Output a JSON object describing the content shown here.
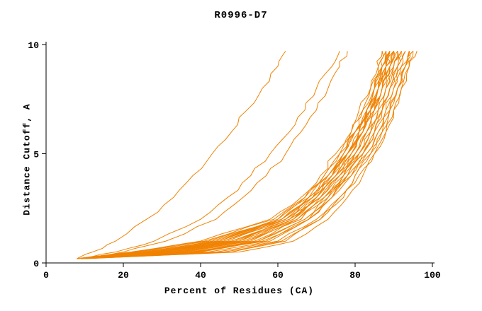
{
  "chart_data": {
    "type": "line",
    "title": "R0996-D7",
    "xlabel": "Percent of Residues (CA)",
    "ylabel": "Distance Cutoff, A",
    "xlim": [
      0,
      100
    ],
    "ylim": [
      0,
      10
    ],
    "x_ticks": [
      0,
      20,
      40,
      60,
      80,
      100
    ],
    "y_ticks": [
      0,
      5,
      10
    ],
    "grid": false,
    "legend": "none",
    "line_color": "#f08200",
    "axis_color": "#000000",
    "cutoff_levels": [
      0.2,
      0.5,
      1,
      2,
      3,
      4,
      5,
      6,
      7,
      8,
      9,
      9.7
    ],
    "series_note": "each series lists Percent of Residues (CA) at the shared cutoff_levels (Angstroms)",
    "series": [
      [
        8,
        12,
        18,
        26,
        33,
        38,
        43,
        48,
        52,
        56,
        60,
        62
      ],
      [
        9,
        18,
        28,
        40,
        47,
        53,
        58,
        63,
        67,
        70,
        74,
        76
      ],
      [
        9,
        20,
        31,
        44,
        51,
        57,
        62,
        66,
        70,
        73,
        76,
        78
      ],
      [
        10,
        42,
        58,
        68,
        74,
        78,
        82,
        85,
        87,
        89,
        91,
        92
      ],
      [
        11,
        48,
        62,
        71,
        76,
        80,
        84,
        87,
        89,
        91,
        93,
        94
      ],
      [
        10,
        50,
        64,
        73,
        78,
        82,
        85,
        88,
        90,
        92,
        94,
        95
      ],
      [
        8,
        24,
        42,
        60,
        67,
        72,
        76,
        79,
        82,
        84,
        86,
        87
      ],
      [
        9,
        28,
        46,
        62,
        69,
        73,
        77,
        80,
        83,
        85,
        87,
        88
      ],
      [
        10,
        32,
        50,
        64,
        70,
        75,
        78,
        81,
        84,
        86,
        88,
        89
      ],
      [
        8,
        26,
        44,
        61,
        68,
        73,
        77,
        80,
        82,
        85,
        87,
        88
      ],
      [
        9,
        30,
        48,
        63,
        70,
        75,
        79,
        82,
        84,
        86,
        88,
        90
      ],
      [
        10,
        34,
        52,
        65,
        71,
        76,
        80,
        83,
        85,
        87,
        89,
        90
      ],
      [
        8,
        22,
        40,
        58,
        66,
        71,
        75,
        79,
        81,
        84,
        86,
        87
      ],
      [
        9,
        36,
        54,
        66,
        72,
        77,
        81,
        84,
        86,
        88,
        90,
        91
      ],
      [
        10,
        38,
        55,
        67,
        73,
        78,
        82,
        85,
        87,
        89,
        91,
        92
      ],
      [
        8,
        27,
        45,
        61,
        68,
        74,
        78,
        81,
        83,
        86,
        88,
        89
      ],
      [
        9,
        31,
        49,
        63,
        70,
        75,
        79,
        82,
        85,
        87,
        89,
        90
      ],
      [
        10,
        29,
        47,
        62,
        69,
        74,
        78,
        81,
        84,
        86,
        88,
        89
      ],
      [
        8,
        33,
        51,
        64,
        71,
        76,
        80,
        83,
        85,
        87,
        89,
        91
      ],
      [
        9,
        25,
        43,
        60,
        68,
        73,
        77,
        80,
        83,
        85,
        87,
        88
      ],
      [
        10,
        35,
        53,
        66,
        72,
        77,
        81,
        84,
        86,
        88,
        90,
        92
      ],
      [
        9,
        37,
        55,
        67,
        73,
        78,
        82,
        85,
        88,
        90,
        92,
        93
      ],
      [
        8,
        28,
        46,
        62,
        69,
        74,
        78,
        82,
        84,
        86,
        88,
        90
      ],
      [
        9,
        32,
        50,
        64,
        71,
        76,
        80,
        83,
        86,
        88,
        90,
        91
      ],
      [
        10,
        30,
        48,
        63,
        70,
        75,
        79,
        82,
        85,
        87,
        89,
        90
      ],
      [
        8,
        26,
        45,
        61,
        69,
        74,
        78,
        81,
        84,
        86,
        88,
        89
      ],
      [
        9,
        34,
        52,
        65,
        72,
        77,
        81,
        84,
        87,
        89,
        91,
        93
      ],
      [
        10,
        40,
        57,
        68,
        74,
        79,
        83,
        86,
        88,
        90,
        92,
        94
      ],
      [
        9,
        44,
        60,
        70,
        76,
        80,
        84,
        87,
        89,
        91,
        93,
        95
      ],
      [
        8,
        23,
        41,
        59,
        67,
        72,
        76,
        80,
        83,
        85,
        87,
        89
      ],
      [
        10,
        46,
        61,
        71,
        77,
        81,
        85,
        88,
        90,
        92,
        94,
        96
      ],
      [
        9,
        39,
        56,
        68,
        74,
        79,
        83,
        86,
        89,
        91,
        93,
        94
      ]
    ]
  }
}
